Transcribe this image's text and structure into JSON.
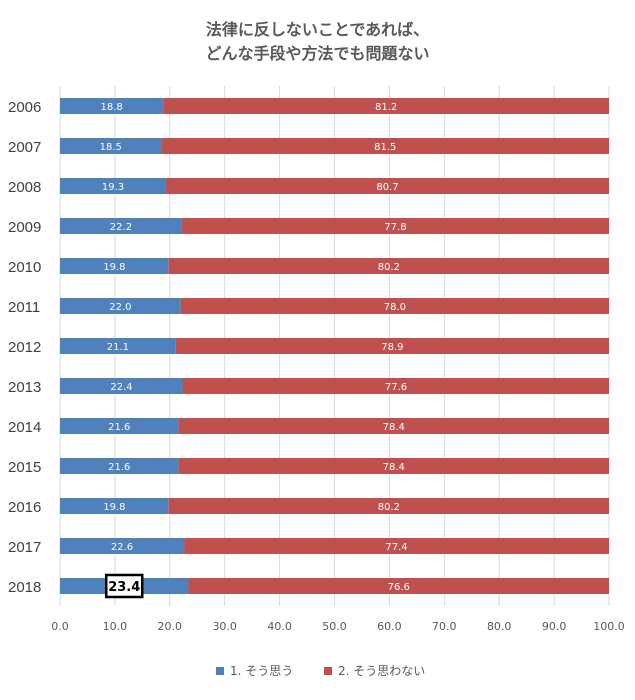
{
  "chart_data": {
    "type": "bar",
    "orientation": "horizontal",
    "stacked": true,
    "title_lines": [
      "法律に反しないことであれば、",
      "どんな手段や方法でも問題ない"
    ],
    "categories": [
      "2006",
      "2007",
      "2008",
      "2009",
      "2010",
      "2011",
      "2012",
      "2013",
      "2014",
      "2015",
      "2016",
      "2017",
      "2018"
    ],
    "series": [
      {
        "name": "1. そう思う",
        "color": "#4f81bd",
        "values": [
          18.8,
          18.5,
          19.3,
          22.2,
          19.8,
          22.0,
          21.1,
          22.4,
          21.6,
          21.6,
          19.8,
          22.6,
          23.4
        ],
        "labels": [
          "18.8",
          "18.5",
          "19.3",
          "22.2",
          "19.8",
          "22.0",
          "21.1",
          "22.4",
          "21.6",
          "21.6",
          "19.8",
          "22.6",
          "23.4"
        ]
      },
      {
        "name": "2. そう思わない",
        "color": "#c0504d",
        "values": [
          81.2,
          81.5,
          80.7,
          77.8,
          80.2,
          78.0,
          78.9,
          77.6,
          78.4,
          78.4,
          80.2,
          77.4,
          76.6
        ],
        "labels": [
          "81.2",
          "81.5",
          "80.7",
          "77.8",
          "80.2",
          "78.0",
          "78.9",
          "77.6",
          "78.4",
          "78.4",
          "80.2",
          "77.4",
          "76.6"
        ]
      }
    ],
    "highlight": {
      "series": 0,
      "category": "2018"
    },
    "xlim": [
      0,
      100
    ],
    "xticks": [
      "0.0",
      "10.0",
      "20.0",
      "30.0",
      "40.0",
      "50.0",
      "60.0",
      "70.0",
      "80.0",
      "90.0",
      "100.0"
    ],
    "grid": true,
    "legend_position": "bottom"
  }
}
